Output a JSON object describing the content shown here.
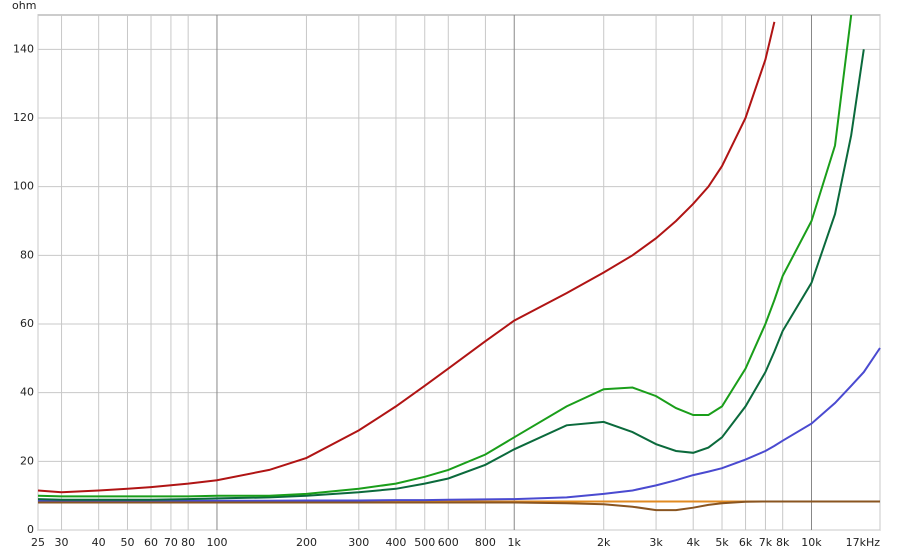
{
  "chart_data": {
    "type": "line",
    "y_label": "ohm",
    "log_x": true,
    "grid": true,
    "xlim": [
      25,
      17000
    ],
    "ylim": [
      0,
      150
    ],
    "xticks": [
      25,
      30,
      40,
      50,
      60,
      70,
      80,
      100,
      200,
      300,
      400,
      500,
      600,
      800,
      {
        "value": 1000,
        "label": "1k"
      },
      {
        "value": 2000,
        "label": "2k"
      },
      {
        "value": 3000,
        "label": "3k"
      },
      {
        "value": 4000,
        "label": "4k"
      },
      {
        "value": 5000,
        "label": "5k"
      },
      {
        "value": 6000,
        "label": "6k"
      },
      {
        "value": 7000,
        "label": "7k"
      },
      {
        "value": 8000,
        "label": "8k"
      },
      {
        "value": 10000,
        "label": "10k"
      },
      {
        "value": 17000,
        "label": "17kHz"
      }
    ],
    "yticks": [
      0,
      20,
      40,
      60,
      80,
      100,
      120,
      140
    ],
    "x": [
      25,
      30,
      40,
      50,
      60,
      80,
      100,
      150,
      200,
      300,
      400,
      500,
      600,
      800,
      1000,
      1500,
      2000,
      2500,
      3000,
      3500,
      4000,
      4500,
      5000,
      6000,
      7000,
      7500,
      8000,
      10000,
      12000,
      13600,
      15000,
      17000
    ],
    "series": [
      {
        "color": "#e08a20",
        "values": [
          8.3,
          8.3,
          8.3,
          8.3,
          8.3,
          8.3,
          8.3,
          8.3,
          8.3,
          8.3,
          8.3,
          8.3,
          8.3,
          8.3,
          8.3,
          8.3,
          8.3,
          8.3,
          8.3,
          8.3,
          8.3,
          8.3,
          8.3,
          8.3,
          8.3,
          8.3,
          8.3,
          8.3,
          8.3,
          8.3,
          8.3,
          8.3
        ]
      },
      {
        "color": "#4a4ad0",
        "values": [
          8.5,
          8.5,
          8.5,
          8.5,
          8.5,
          8.5,
          8.5,
          8.5,
          8.6,
          8.6,
          8.7,
          8.7,
          8.8,
          8.9,
          9,
          9.5,
          10.5,
          11.5,
          13,
          14.5,
          16,
          17,
          18,
          20.5,
          23,
          24.5,
          26,
          31,
          37,
          42,
          46,
          53
        ]
      },
      {
        "color": "#8a5520",
        "values": [
          8,
          8,
          8,
          8,
          8,
          8,
          8,
          8,
          8,
          8,
          8,
          8,
          8,
          8,
          8,
          7.8,
          7.5,
          6.8,
          5.8,
          5.8,
          6.5,
          7.3,
          7.8,
          8.2,
          8.3,
          8.3,
          8.3,
          8.3,
          8.3,
          8.3,
          8.3,
          8.3
        ]
      },
      {
        "color": "#0b6a3c",
        "values": [
          9,
          8.8,
          8.8,
          8.8,
          8.8,
          9,
          9.2,
          9.5,
          10,
          11,
          12,
          13.5,
          15,
          19,
          23.5,
          30.5,
          31.5,
          28.5,
          25,
          23,
          22.5,
          24,
          27,
          36,
          46,
          52,
          58,
          72,
          92,
          115,
          140,
          null
        ]
      },
      {
        "color": "#1a9e1a",
        "values": [
          10,
          9.8,
          9.8,
          9.8,
          9.8,
          9.8,
          10,
          10,
          10.5,
          12,
          13.5,
          15.5,
          17.5,
          22,
          27,
          36,
          41,
          41.5,
          39,
          35.5,
          33.5,
          33.5,
          36,
          47,
          60,
          67,
          74,
          90,
          112,
          150,
          null,
          null
        ]
      },
      {
        "color": "#b01414",
        "values": [
          11.5,
          11,
          11.5,
          12,
          12.5,
          13.5,
          14.5,
          17.5,
          21,
          29,
          36,
          42,
          47,
          55,
          61,
          69,
          75,
          80,
          85,
          90,
          95,
          100,
          106,
          120,
          137,
          148,
          null,
          null,
          null,
          null,
          null,
          null
        ]
      }
    ]
  }
}
